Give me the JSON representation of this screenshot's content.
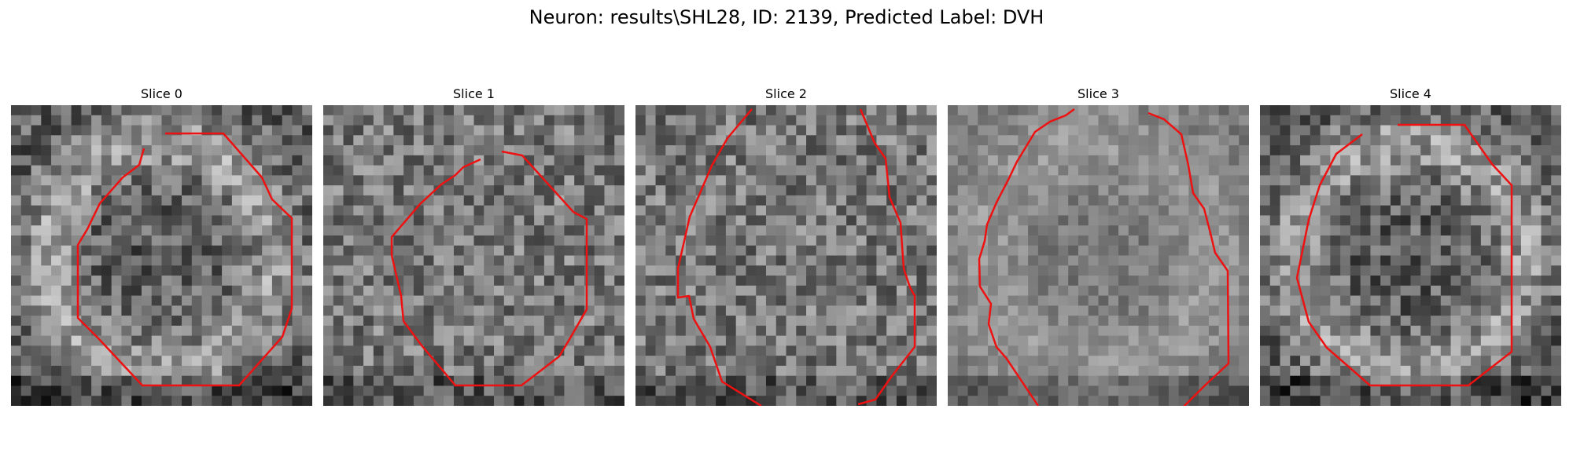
{
  "figure": {
    "title": "Neuron: results\\SHL28, ID: 2139, Predicted Label: DVH"
  },
  "colors": {
    "contour": "#ee1111",
    "background": "#ffffff",
    "colormap": "grayscale"
  },
  "panels": [
    {
      "title": "Slice 0",
      "seed": 11,
      "bright": "ring"
    },
    {
      "title": "Slice 1",
      "seed": 23,
      "bright": "noise"
    },
    {
      "title": "Slice 2",
      "seed": 37,
      "bright": "noise"
    },
    {
      "title": "Slice 3",
      "seed": 41,
      "bright": "smooth"
    },
    {
      "title": "Slice 4",
      "seed": 53,
      "bright": "ring"
    }
  ]
}
